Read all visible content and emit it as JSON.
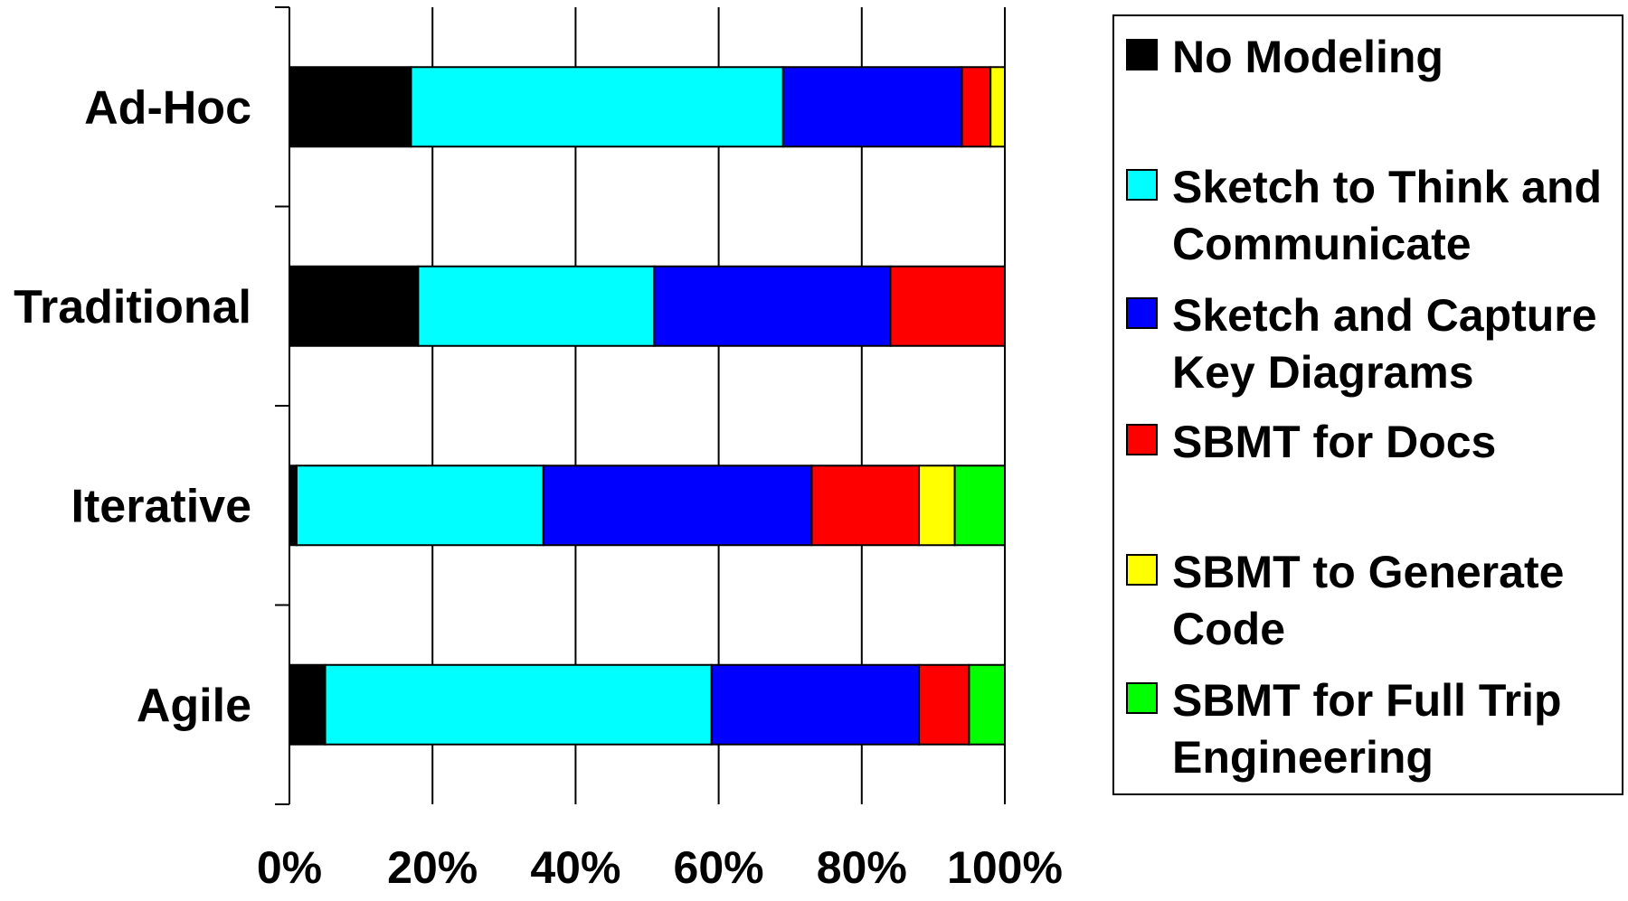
{
  "chart_data": {
    "type": "bar",
    "orientation": "horizontal",
    "stacked": "percent",
    "categories": [
      "Ad-Hoc",
      "Traditional",
      "Iterative",
      "Agile"
    ],
    "series": [
      {
        "name": "No Modeling",
        "color": "#000000",
        "values": [
          17,
          18,
          1,
          5
        ]
      },
      {
        "name": "Sketch to Think and Communicate",
        "color": "#00FFFF",
        "values": [
          52,
          33,
          34.5,
          54
        ]
      },
      {
        "name": "Sketch and Capture Key Diagrams",
        "color": "#0000FF",
        "values": [
          25,
          33,
          37.5,
          29
        ]
      },
      {
        "name": "SBMT for Docs",
        "color": "#FF0000",
        "values": [
          4,
          16,
          15,
          7
        ]
      },
      {
        "name": "SBMT to Generate Code",
        "color": "#FFFF00",
        "values": [
          2,
          0,
          5,
          0
        ]
      },
      {
        "name": "SBMT for Full Trip Engineering",
        "color": "#00FF00",
        "values": [
          0,
          0,
          7,
          5
        ]
      }
    ],
    "x_ticks": [
      "0%",
      "20%",
      "40%",
      "60%",
      "80%",
      "100%"
    ],
    "xlim": [
      0,
      100
    ],
    "grid": true,
    "legend_position": "right",
    "legend_lines": [
      [
        "No Modeling"
      ],
      [
        "Sketch to Think and",
        "Communicate"
      ],
      [
        "Sketch and Capture",
        "Key Diagrams"
      ],
      [
        "SBMT for Docs"
      ],
      [
        "SBMT to Generate",
        "Code"
      ],
      [
        "SBMT for Full Trip",
        "Engineering"
      ]
    ]
  }
}
